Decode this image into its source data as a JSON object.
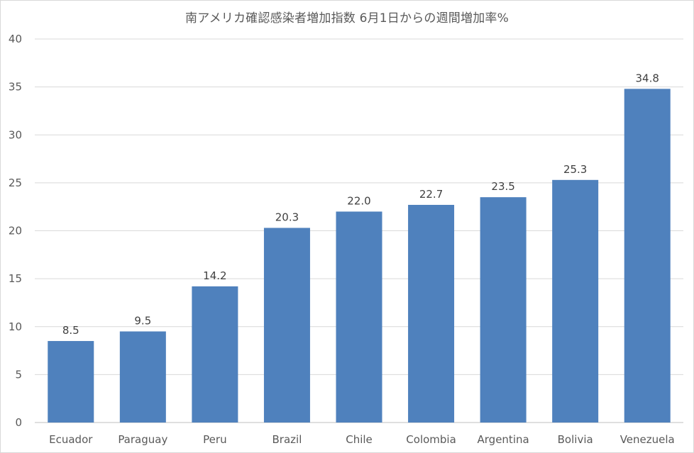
{
  "chart_data": {
    "type": "bar",
    "title": "南アメリカ確認感染者増加指数 6月1日からの週間増加率%",
    "categories": [
      "Ecuador",
      "Paraguay",
      "Peru",
      "Brazil",
      "Chile",
      "Colombia",
      "Argentina",
      "Bolivia",
      "Venezuela"
    ],
    "values": [
      8.5,
      9.5,
      14.2,
      20.3,
      22.0,
      22.7,
      23.5,
      25.3,
      34.8
    ],
    "value_labels": [
      "8.5",
      "9.5",
      "14.2",
      "20.3",
      "22.0",
      "22.7",
      "23.5",
      "25.3",
      "34.8"
    ],
    "yticks": [
      "0",
      "5",
      "10",
      "15",
      "20",
      "25",
      "30",
      "35",
      "40"
    ],
    "ylim": [
      0,
      40
    ],
    "grid": true,
    "legend": "none",
    "bar_color": "#4f81bd",
    "grid_color": "#d9d9d9"
  }
}
